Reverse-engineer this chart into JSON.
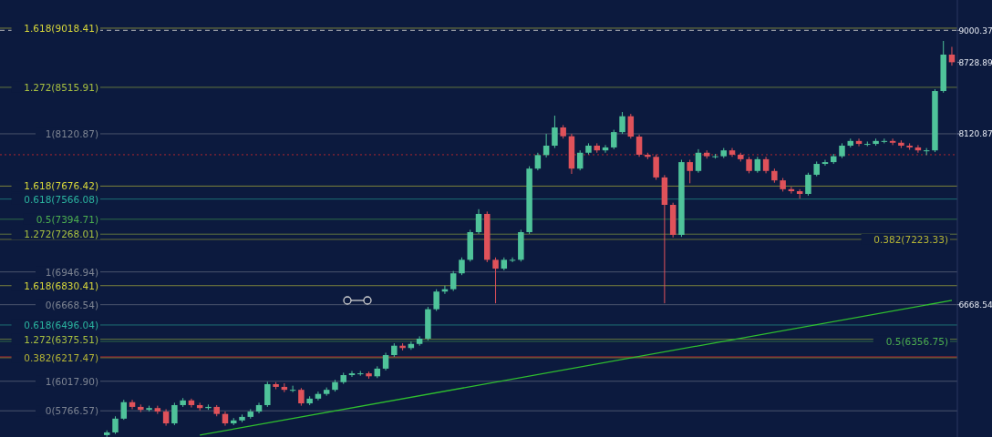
{
  "chart_data": {
    "type": "candlestick",
    "categories": [
      null,
      null,
      null,
      null,
      null,
      null,
      null,
      null,
      null,
      null,
      null,
      null,
      null,
      null,
      null,
      null,
      null,
      null,
      null,
      null,
      null,
      null,
      null,
      null,
      null,
      null,
      null,
      null,
      null,
      null,
      null,
      null,
      null,
      null,
      null,
      null,
      null,
      null,
      null,
      null,
      null,
      null,
      null,
      null,
      null,
      null,
      null,
      null,
      null,
      null,
      null,
      null,
      null,
      null,
      null,
      null,
      null,
      null,
      null,
      null,
      null,
      null,
      null,
      null,
      null,
      null,
      null,
      null,
      null,
      null,
      null,
      null,
      null,
      null,
      null,
      null,
      null,
      null,
      null,
      null,
      null,
      null,
      null,
      null,
      null,
      null,
      null,
      null,
      null,
      null,
      null,
      null,
      null,
      null,
      null,
      null,
      null,
      null,
      null,
      null,
      null,
      null,
      null,
      null,
      null,
      null,
      null,
      null,
      null,
      null,
      null,
      null,
      null
    ],
    "ohlc": [
      null,
      null,
      null,
      null,
      null,
      null,
      null,
      null,
      null,
      null,
      null,
      null,
      [
        5560,
        5600,
        5545,
        5583
      ],
      [
        5583,
        5720,
        5570,
        5700
      ],
      [
        5700,
        5860,
        5690,
        5840
      ],
      [
        5840,
        5860,
        5780,
        5800
      ],
      [
        5800,
        5820,
        5755,
        5775
      ],
      [
        5775,
        5810,
        5760,
        5790
      ],
      [
        5790,
        5810,
        5740,
        5760
      ],
      [
        5760,
        5780,
        5640,
        5660
      ],
      [
        5660,
        5835,
        5645,
        5815
      ],
      [
        5815,
        5875,
        5800,
        5855
      ],
      [
        5855,
        5870,
        5795,
        5815
      ],
      [
        5815,
        5835,
        5770,
        5790
      ],
      [
        5790,
        5820,
        5775,
        5800
      ],
      [
        5800,
        5815,
        5720,
        5740
      ],
      [
        5740,
        5760,
        5640,
        5660
      ],
      [
        5660,
        5705,
        5645,
        5685
      ],
      [
        5685,
        5735,
        5670,
        5715
      ],
      [
        5715,
        5780,
        5700,
        5760
      ],
      [
        5760,
        5835,
        5745,
        5815
      ],
      [
        5815,
        6013,
        5800,
        5993
      ],
      [
        5993,
        6010,
        5950,
        5970
      ],
      [
        5970,
        6000,
        5925,
        5945
      ],
      [
        5945,
        5980,
        5925,
        5945
      ],
      [
        5945,
        5960,
        5810,
        5830
      ],
      [
        5830,
        5890,
        5815,
        5870
      ],
      [
        5870,
        5930,
        5855,
        5910
      ],
      [
        5910,
        5965,
        5895,
        5945
      ],
      [
        5945,
        6030,
        5930,
        6010
      ],
      [
        6010,
        6090,
        5995,
        6070
      ],
      [
        6070,
        6105,
        6055,
        6085
      ],
      [
        6085,
        6105,
        6065,
        6085
      ],
      [
        6085,
        6100,
        6040,
        6060
      ],
      [
        6060,
        6145,
        6045,
        6125
      ],
      [
        6125,
        6260,
        6110,
        6240
      ],
      [
        6240,
        6340,
        6225,
        6320
      ],
      [
        6320,
        6340,
        6280,
        6300
      ],
      [
        6300,
        6355,
        6285,
        6335
      ],
      [
        6335,
        6400,
        6320,
        6380
      ],
      [
        6380,
        6650,
        6365,
        6630
      ],
      [
        6630,
        6800,
        6615,
        6780
      ],
      [
        6780,
        6830,
        6760,
        6800
      ],
      [
        6800,
        6955,
        6785,
        6935
      ],
      [
        6935,
        7070,
        6920,
        7050
      ],
      [
        7050,
        7305,
        7035,
        7285
      ],
      [
        7285,
        7480,
        7270,
        7440
      ],
      [
        7440,
        7460,
        7030,
        7050
      ],
      [
        7050,
        7070,
        6680,
        6975
      ],
      [
        6975,
        7070,
        6960,
        7050
      ],
      [
        7050,
        7070,
        7030,
        7050
      ],
      [
        7050,
        7305,
        7035,
        7285
      ],
      [
        7285,
        7845,
        7270,
        7825
      ],
      [
        7825,
        7960,
        7810,
        7940
      ],
      [
        7940,
        8120,
        7920,
        8020
      ],
      [
        8020,
        8275,
        8000,
        8175
      ],
      [
        8175,
        8195,
        8080,
        8100
      ],
      [
        8100,
        8120,
        7780,
        7825
      ],
      [
        7825,
        7980,
        7810,
        7960
      ],
      [
        7960,
        8040,
        7945,
        8020
      ],
      [
        8020,
        8040,
        7960,
        7980
      ],
      [
        7980,
        8025,
        7960,
        8005
      ],
      [
        8005,
        8155,
        7990,
        8135
      ],
      [
        8135,
        8306,
        8120,
        8270
      ],
      [
        8270,
        8290,
        8080,
        8097
      ],
      [
        8097,
        8115,
        7925,
        7943
      ],
      [
        7943,
        7960,
        7905,
        7925
      ],
      [
        7925,
        7945,
        7730,
        7750
      ],
      [
        7750,
        7770,
        6680,
        7517
      ],
      [
        7517,
        7535,
        7240,
        7262
      ],
      [
        7262,
        7900,
        7245,
        7880
      ],
      [
        7880,
        7900,
        7700,
        7805
      ],
      [
        7805,
        7990,
        7790,
        7960
      ],
      [
        7960,
        7980,
        7910,
        7930
      ],
      [
        7930,
        7950,
        7910,
        7930
      ],
      [
        7930,
        8000,
        7915,
        7980
      ],
      [
        7980,
        8000,
        7925,
        7943
      ],
      [
        7943,
        7960,
        7885,
        7905
      ],
      [
        7905,
        7925,
        7785,
        7805
      ],
      [
        7805,
        7925,
        7790,
        7905
      ],
      [
        7905,
        7925,
        7785,
        7805
      ],
      [
        7805,
        7825,
        7705,
        7725
      ],
      [
        7725,
        7745,
        7630,
        7650
      ],
      [
        7650,
        7670,
        7613,
        7633
      ],
      [
        7633,
        7650,
        7570,
        7610
      ],
      [
        7610,
        7790,
        7595,
        7773
      ],
      [
        7773,
        7885,
        7760,
        7865
      ],
      [
        7865,
        7900,
        7850,
        7880
      ],
      [
        7880,
        7950,
        7865,
        7930
      ],
      [
        7930,
        8040,
        7915,
        8020
      ],
      [
        8020,
        8080,
        8005,
        8060
      ],
      [
        8060,
        8080,
        8015,
        8035
      ],
      [
        8035,
        8055,
        8015,
        8035
      ],
      [
        8035,
        8080,
        8020,
        8060
      ],
      [
        8060,
        8080,
        8040,
        8060
      ],
      [
        8060,
        8080,
        8025,
        8045
      ],
      [
        8045,
        8065,
        8000,
        8020
      ],
      [
        8020,
        8040,
        7985,
        8005
      ],
      [
        8005,
        8025,
        7960,
        7980
      ],
      [
        7980,
        8000,
        7940,
        7980
      ],
      [
        7980,
        8500,
        7965,
        8484
      ],
      [
        8484,
        8910,
        8470,
        8794
      ],
      [
        8794,
        8860,
        8700,
        8729
      ]
    ],
    "series": [
      {
        "type": "line",
        "color": "#2fbf2f",
        "values": [
          null,
          null,
          null,
          null,
          null,
          null,
          null,
          null,
          null,
          null,
          null,
          null,
          null,
          null,
          null,
          null,
          null,
          null,
          null,
          null,
          null,
          null,
          null,
          5560,
          null,
          null,
          null,
          null,
          null,
          null,
          null,
          null,
          null,
          null,
          null,
          null,
          null,
          null,
          null,
          null,
          null,
          null,
          null,
          null,
          null,
          null,
          null,
          null,
          null,
          null,
          null,
          null,
          null,
          null,
          null,
          null,
          null,
          null,
          null,
          null,
          null,
          null,
          null,
          null,
          null,
          null,
          null,
          null,
          null,
          null,
          null,
          null,
          null,
          null,
          null,
          null,
          null,
          null,
          null,
          null,
          null,
          null,
          null,
          null,
          null,
          null,
          null,
          null,
          null,
          null,
          null,
          null,
          null,
          null,
          null,
          null,
          null,
          null,
          null,
          null,
          null,
          null,
          null,
          null,
          null,
          null,
          null,
          null,
          null,
          null,
          null,
          null,
          6705
        ]
      }
    ],
    "ylim": [
      5544,
      9258
    ],
    "yticks": [
      6668.54,
      8120.87,
      8728.89,
      9000.37
    ],
    "ref_lines": [
      {
        "axis": "y",
        "value": 9000.37,
        "color": "#c8c8c8",
        "line_style": "dashed"
      },
      {
        "axis": "y",
        "value": 6225,
        "color": "#c0282d"
      },
      {
        "axis": "y",
        "value": 7943,
        "color": "#c0282d",
        "line_style": "dotted"
      },
      {
        "axis": "y",
        "value": 6830.41,
        "label": "1.618(6830.41)",
        "color": "#d8d83a"
      },
      {
        "axis": "y",
        "value": 6375.51,
        "label": "1.272(6375.51)",
        "color": "#a8c040"
      },
      {
        "axis": "y",
        "value": 6017.9,
        "label": "1(6017.90)",
        "color": "#7d8492"
      },
      {
        "axis": "y",
        "value": 7676.42,
        "label": "1.618(7676.42)",
        "color": "#d8d83a"
      },
      {
        "axis": "y",
        "value": 7268.01,
        "label": "1.272(7268.01)",
        "color": "#a8c040"
      },
      {
        "axis": "y",
        "value": 6946.94,
        "label": "1(6946.94)",
        "color": "#7d8492"
      },
      {
        "axis": "y",
        "value": 6496.04,
        "label": "0.618(6496.04)",
        "color": "#2bb5a0"
      },
      {
        "axis": "y",
        "value": 6356.75,
        "label": "0.5(6356.75)",
        "color": "#4caf50"
      },
      {
        "axis": "y",
        "value": 6217.47,
        "label": "0.382(6217.47)",
        "color": "#b5b535"
      },
      {
        "axis": "y",
        "value": 5766.57,
        "label": "0(5766.57)",
        "color": "#7d8492"
      },
      {
        "axis": "y",
        "value": 9018.41,
        "label": "1.618(9018.41)",
        "color": "#d8d83a"
      },
      {
        "axis": "y",
        "value": 8515.91,
        "label": "1.272(8515.91)",
        "color": "#a8c040"
      },
      {
        "axis": "y",
        "value": 8120.87,
        "label": "1(8120.87)",
        "color": "#7d8492"
      },
      {
        "axis": "y",
        "value": 7566.08,
        "label": "0.618(7566.08)",
        "color": "#2bb5a0"
      },
      {
        "axis": "y",
        "value": 7394.71,
        "label": "0.5(7394.71)",
        "color": "#4caf50"
      },
      {
        "axis": "y",
        "value": 7223.33,
        "label": "0.382(7223.33)",
        "color": "#b5b535"
      },
      {
        "axis": "y",
        "value": 6668.54,
        "label": "0(6668.54)",
        "color": "#7d8492"
      }
    ]
  }
}
